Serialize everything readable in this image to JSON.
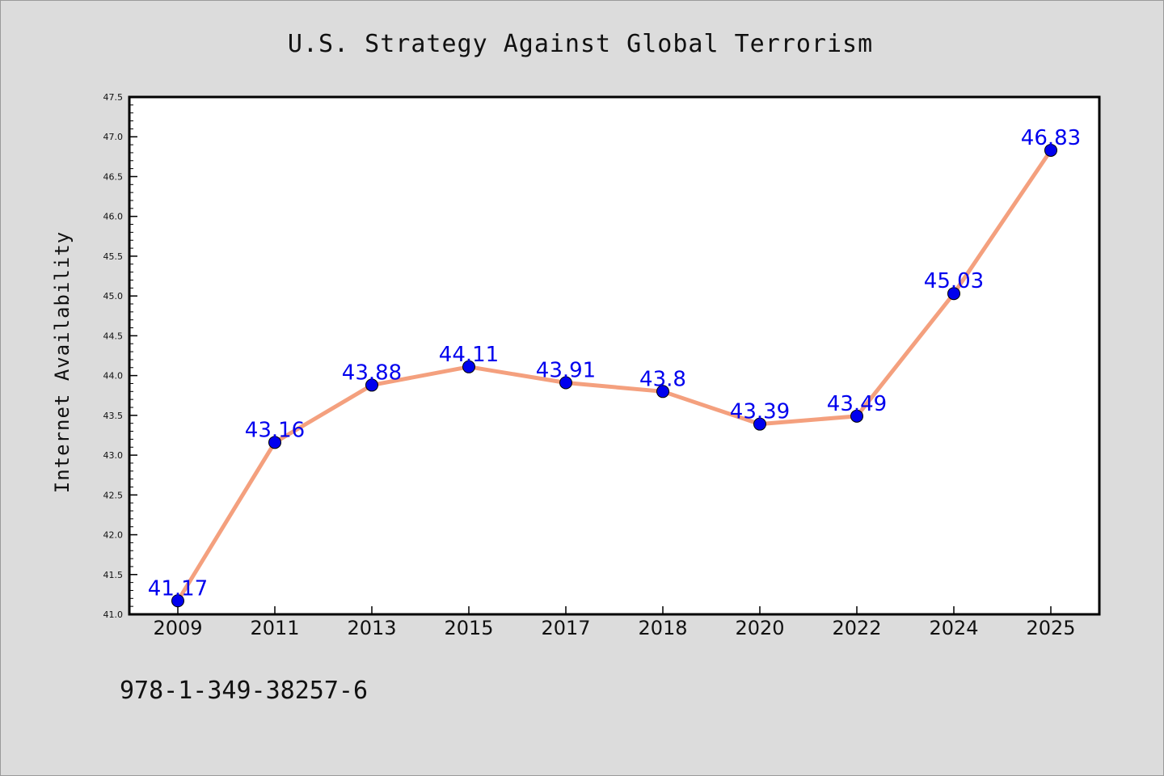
{
  "chart_data": {
    "type": "line",
    "title": "U.S. Strategy Against Global Terrorism",
    "xlabel": "",
    "ylabel": "Internet Availability",
    "categories": [
      "2009",
      "2011",
      "2013",
      "2015",
      "2017",
      "2018",
      "2020",
      "2022",
      "2024",
      "2025"
    ],
    "series": [
      {
        "values": [
          41.17,
          43.16,
          43.88,
          44.11,
          43.91,
          43.8,
          43.39,
          43.49,
          45.03,
          46.83
        ],
        "data_labels": [
          "41.17",
          "43.16",
          "43.88",
          "44.11",
          "43.91",
          "43.8",
          "43.39",
          "43.49",
          "45.03",
          "46.83"
        ]
      }
    ],
    "ylim": [
      41.0,
      47.5
    ],
    "yticks": [
      "41.0",
      "41.5",
      "42.0",
      "42.5",
      "43.0",
      "43.5",
      "44.0",
      "44.5",
      "45.0",
      "45.5",
      "46.0",
      "46.5",
      "47.0",
      "47.5"
    ],
    "grid": false,
    "legend": "none",
    "colors": {
      "line": "#f4a07e",
      "marker": "#0000ee",
      "data_label": "#0000ee",
      "background": "#dcdcdc",
      "plot_background": "#ffffff"
    }
  },
  "footnote": "978-1-349-38257-6"
}
